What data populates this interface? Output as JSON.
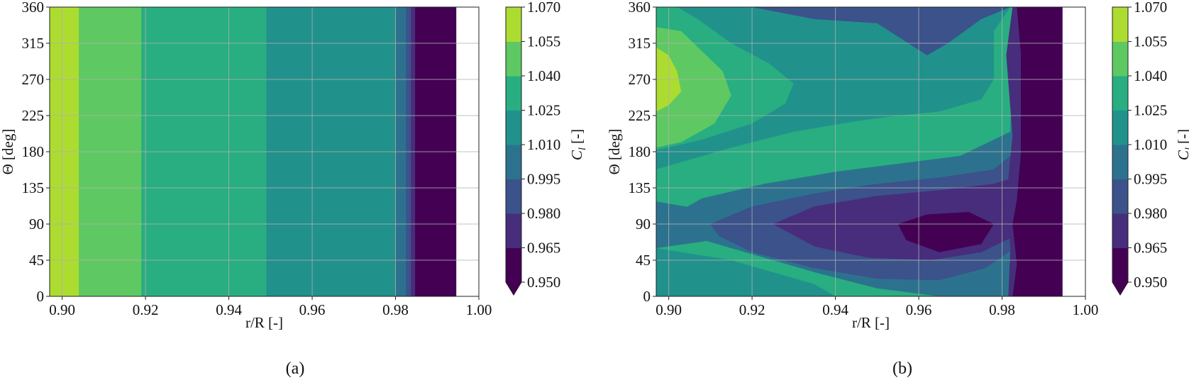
{
  "colorbar": {
    "ticks": [
      "0.950",
      "0.965",
      "0.980",
      "0.995",
      "1.010",
      "1.025",
      "1.040",
      "1.055",
      "1.070"
    ],
    "label": "C_l [-]",
    "label_main": "C",
    "label_sub": "l",
    "label_unit": " [-]",
    "extend": "min",
    "colors": [
      "#440154",
      "#472d7b",
      "#3b528b",
      "#2c728e",
      "#21918c",
      "#28ae80",
      "#5ec962",
      "#addc30"
    ],
    "under_color": "#440154"
  },
  "chart_data": [
    {
      "type": "heatmap",
      "caption": "(a)",
      "xlabel": "r/R [-]",
      "ylabel": "Θ [deg]",
      "xlim": [
        0.897,
        1.0
      ],
      "ylim": [
        0,
        360
      ],
      "xticks": [
        "0.90",
        "0.92",
        "0.94",
        "0.96",
        "0.98",
        "1.00"
      ],
      "yticks": [
        "0",
        "45",
        "90",
        "135",
        "180",
        "225",
        "270",
        "315",
        "360"
      ],
      "data_xmax": 0.9945,
      "grid": true,
      "bands": [
        {
          "x_to": 0.904,
          "cl_range": "1.055–1.070",
          "level": 7
        },
        {
          "x_to": 0.919,
          "cl_range": "1.040–1.055",
          "level": 6
        },
        {
          "x_to": 0.949,
          "cl_range": "1.025–1.040",
          "level": 5
        },
        {
          "x_to": 0.98,
          "cl_range": "1.010–1.025",
          "level": 4
        },
        {
          "x_to": 0.9825,
          "cl_range": "0.995–1.010",
          "level": 3
        },
        {
          "x_to": 0.9837,
          "cl_range": "0.980–0.995",
          "level": 2
        },
        {
          "x_to": 0.9847,
          "cl_range": "0.965–0.980",
          "level": 1
        },
        {
          "x_to": 0.9945,
          "cl_range": "<0.950",
          "level": 0
        }
      ]
    },
    {
      "type": "heatmap",
      "caption": "(b)",
      "xlabel": "r/R [-]",
      "ylabel": "Θ [deg]",
      "xlim": [
        0.897,
        1.0
      ],
      "ylim": [
        0,
        360
      ],
      "xticks": [
        "0.90",
        "0.92",
        "0.94",
        "0.96",
        "0.98",
        "1.00"
      ],
      "yticks": [
        "0",
        "45",
        "90",
        "135",
        "180",
        "225",
        "270",
        "315",
        "360"
      ],
      "data_xmax": 0.9945,
      "grid": true,
      "background_level": 4,
      "regions": [
        {
          "level": 5,
          "points": [
            [
              0.897,
              360
            ],
            [
              0.897,
              60
            ],
            [
              0.903,
              55
            ],
            [
              0.915,
              45
            ],
            [
              0.925,
              30
            ],
            [
              0.935,
              15
            ],
            [
              0.94,
              0
            ],
            [
              0.9825,
              0
            ],
            [
              0.9825,
              360
            ]
          ]
        },
        {
          "level": 3,
          "points": [
            [
              0.897,
              118
            ],
            [
              0.906,
              110
            ],
            [
              0.918,
              100
            ],
            [
              0.925,
              90
            ],
            [
              0.918,
              78
            ],
            [
              0.908,
              68
            ],
            [
              0.897,
              60
            ]
          ]
        },
        {
          "level": 4,
          "points": [
            [
              0.897,
              360
            ],
            [
              0.897,
              158
            ],
            [
              0.905,
              170
            ],
            [
              0.915,
              185
            ],
            [
              0.93,
              205
            ],
            [
              0.945,
              218
            ],
            [
              0.955,
              225
            ],
            [
              0.965,
              230
            ],
            [
              0.975,
              245
            ],
            [
              0.978,
              270
            ],
            [
              0.978,
              330
            ],
            [
              0.982,
              360
            ]
          ]
        },
        {
          "level": 5,
          "points": [
            [
              0.897,
              360
            ],
            [
              0.897,
              182
            ],
            [
              0.908,
              195
            ],
            [
              0.92,
              215
            ],
            [
              0.928,
              240
            ],
            [
              0.93,
              265
            ],
            [
              0.924,
              290
            ],
            [
              0.915,
              315
            ],
            [
              0.907,
              345
            ],
            [
              0.902,
              360
            ]
          ]
        },
        {
          "level": 6,
          "points": [
            [
              0.897,
              335
            ],
            [
              0.897,
              185
            ],
            [
              0.903,
              192
            ],
            [
              0.911,
              215
            ],
            [
              0.915,
              250
            ],
            [
              0.913,
              280
            ],
            [
              0.908,
              305
            ],
            [
              0.903,
              330
            ]
          ]
        },
        {
          "level": 7,
          "points": [
            [
              0.897,
              310
            ],
            [
              0.897,
              230
            ],
            [
              0.9,
              238
            ],
            [
              0.903,
              255
            ],
            [
              0.902,
              280
            ],
            [
              0.9,
              300
            ]
          ]
        },
        {
          "level": 2,
          "points": [
            [
              0.92,
              360
            ],
            [
              0.935,
              345
            ],
            [
              0.95,
              340
            ],
            [
              0.962,
              300
            ],
            [
              0.967,
              315
            ],
            [
              0.975,
              345
            ],
            [
              0.982,
              360
            ]
          ]
        },
        {
          "level": 3,
          "points": [
            [
              0.897,
              90
            ],
            [
              0.908,
              122
            ],
            [
              0.923,
              140
            ],
            [
              0.94,
              155
            ],
            [
              0.955,
              165
            ],
            [
              0.97,
              175
            ],
            [
              0.982,
              205
            ],
            [
              0.9825,
              360
            ],
            [
              0.983,
              0
            ],
            [
              0.965,
              0
            ],
            [
              0.95,
              10
            ],
            [
              0.935,
              30
            ],
            [
              0.925,
              45
            ],
            [
              0.915,
              60
            ],
            [
              0.905,
              75
            ],
            [
              0.897,
              80
            ]
          ]
        },
        {
          "level": 2,
          "points": [
            [
              0.91,
              90
            ],
            [
              0.92,
              112
            ],
            [
              0.935,
              128
            ],
            [
              0.95,
              140
            ],
            [
              0.965,
              148
            ],
            [
              0.978,
              158
            ],
            [
              0.982,
              175
            ],
            [
              0.983,
              60
            ],
            [
              0.976,
              35
            ],
            [
              0.965,
              20
            ],
            [
              0.95,
              22
            ],
            [
              0.935,
              35
            ],
            [
              0.92,
              55
            ],
            [
              0.912,
              75
            ]
          ]
        },
        {
          "level": 1,
          "points": [
            [
              0.925,
              90
            ],
            [
              0.935,
              112
            ],
            [
              0.95,
              125
            ],
            [
              0.965,
              132
            ],
            [
              0.978,
              140
            ],
            [
              0.983,
              148
            ],
            [
              0.983,
              75
            ],
            [
              0.975,
              55
            ],
            [
              0.963,
              45
            ],
            [
              0.948,
              48
            ],
            [
              0.935,
              62
            ]
          ]
        },
        {
          "level": 0,
          "points": [
            [
              0.955,
              90
            ],
            [
              0.962,
              102
            ],
            [
              0.972,
              105
            ],
            [
              0.978,
              90
            ],
            [
              0.975,
              65
            ],
            [
              0.965,
              55
            ],
            [
              0.957,
              70
            ]
          ]
        },
        {
          "level": 0,
          "points": [
            [
              0.9835,
              360
            ],
            [
              0.9845,
              300
            ],
            [
              0.9845,
              180
            ],
            [
              0.9835,
              120
            ],
            [
              0.9825,
              90
            ],
            [
              0.9835,
              40
            ],
            [
              0.9825,
              0
            ],
            [
              0.9945,
              0
            ],
            [
              0.9945,
              360
            ]
          ]
        },
        {
          "level": 1,
          "points": [
            [
              0.9825,
              360
            ],
            [
              0.9835,
              360
            ],
            [
              0.9845,
              300
            ],
            [
              0.9845,
              180
            ],
            [
              0.9835,
              120
            ],
            [
              0.9825,
              90
            ],
            [
              0.9835,
              40
            ],
            [
              0.9825,
              0
            ],
            [
              0.9815,
              0
            ],
            [
              0.982,
              60
            ],
            [
              0.981,
              120
            ],
            [
              0.9825,
              200
            ],
            [
              0.981,
              300
            ]
          ]
        }
      ]
    }
  ]
}
